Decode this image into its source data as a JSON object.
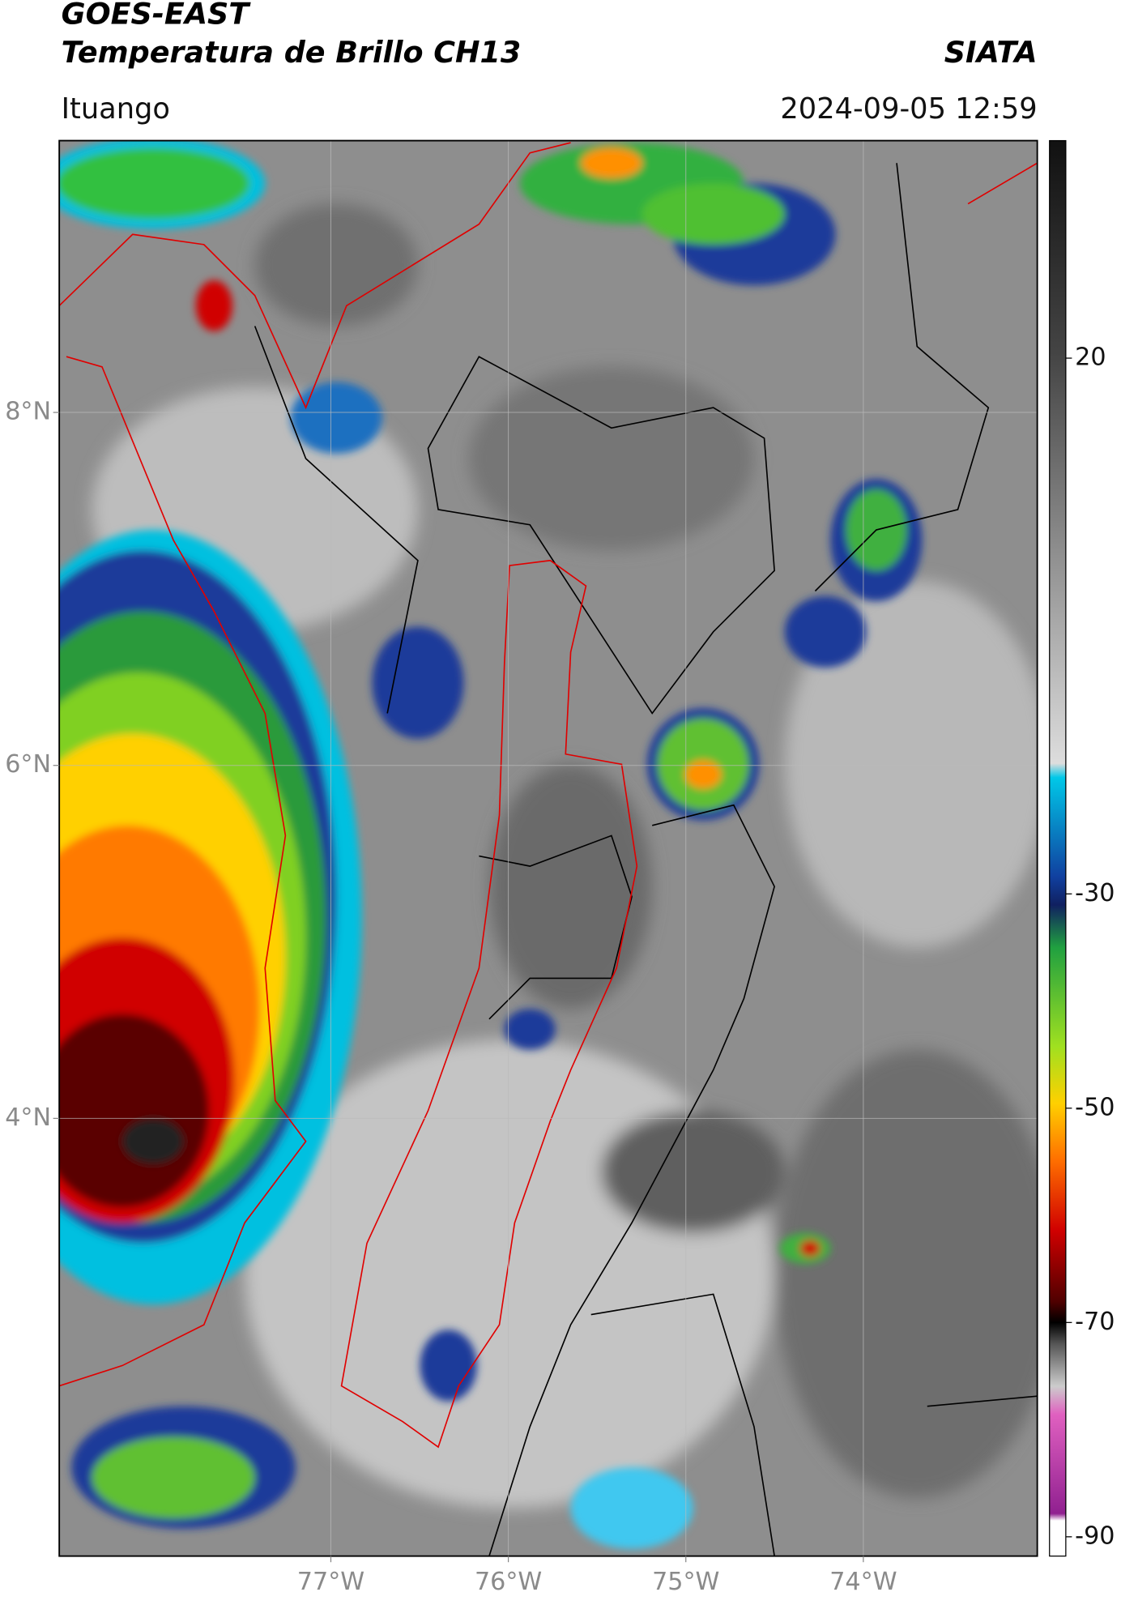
{
  "header": {
    "title": "GOES-EAST",
    "subtitle": "Temperatura de Brillo CH13",
    "source": "SIATA",
    "location": "Ituango",
    "datetime": "2024-09-05 12:59"
  },
  "map": {
    "xlim": [
      -78.53,
      -73.02
    ],
    "ylim": [
      1.52,
      9.54
    ],
    "xticks": [
      {
        "value": -77,
        "label": "77°W"
      },
      {
        "value": -76,
        "label": "76°W"
      },
      {
        "value": -75,
        "label": "75°W"
      },
      {
        "value": -74,
        "label": "74°W"
      }
    ],
    "yticks": [
      {
        "value": 8,
        "label": "8°N"
      },
      {
        "value": 6,
        "label": "6°N"
      },
      {
        "value": 4,
        "label": "4°N"
      }
    ],
    "grid": true
  },
  "colorbar": {
    "lim": [
      -91.8,
      40.3
    ],
    "ticks": [
      20,
      -30,
      -50,
      -70,
      -90
    ]
  }
}
